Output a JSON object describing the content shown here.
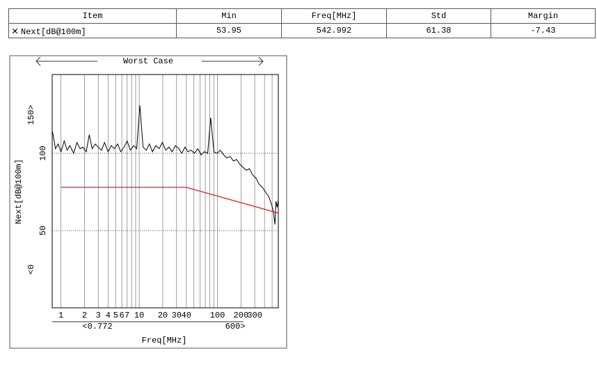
{
  "table": {
    "header": [
      "Item",
      "Min",
      "Freq[MHz]",
      "Std",
      "Margin"
    ],
    "rows": [
      [
        "Next[dB@100m]",
        "53.95",
        "542.992",
        "61.38",
        "-7.43"
      ]
    ]
  },
  "chart_data": {
    "type": "line",
    "title": "Worst Case",
    "xlabel": "Freq[MHz]",
    "ylabel": "Next[dB@100m]",
    "xscale": "log",
    "xlim": [
      0.772,
      600
    ],
    "ylim": [
      0,
      151
    ],
    "xticks": [
      1,
      2,
      3,
      4,
      5,
      6,
      7,
      10,
      20,
      30,
      40,
      100,
      200,
      300
    ],
    "x_minor_ticks": [
      8,
      9,
      50,
      60,
      70,
      80,
      90,
      400,
      500
    ],
    "yticks": [
      50,
      100
    ],
    "x_range_labels": [
      "<0.772",
      "600>"
    ],
    "y_range_labels": [
      "<0",
      "150>"
    ],
    "grid": true,
    "series": [
      {
        "color": "#000000",
        "x": [
          0.78,
          0.85,
          0.92,
          1,
          1.1,
          1.2,
          1.3,
          1.45,
          1.6,
          1.75,
          1.9,
          2.1,
          2.3,
          2.5,
          2.75,
          3,
          3.3,
          3.6,
          4,
          4.4,
          4.8,
          5.3,
          5.8,
          6.4,
          7,
          7.7,
          8.5,
          9.3,
          10.2,
          11.2,
          12.3,
          13.5,
          14.8,
          16.3,
          18,
          19.8,
          21.8,
          24,
          26.4,
          29,
          32,
          35,
          38.5,
          42,
          46,
          51,
          56,
          62,
          68,
          75,
          82,
          90,
          99,
          109,
          120,
          132,
          145,
          160,
          176,
          193,
          212,
          233,
          256,
          282,
          310,
          340,
          375,
          412,
          453,
          498,
          520,
          542.992,
          560,
          580,
          600
        ],
        "values": [
          114,
          103,
          106,
          101,
          108,
          102,
          105,
          100,
          107,
          103,
          104,
          101,
          112,
          103,
          106,
          104,
          102,
          107,
          101,
          105,
          103,
          106,
          101,
          104,
          108,
          102,
          105,
          103,
          131,
          104,
          102,
          106,
          101,
          105,
          103,
          107,
          102,
          104,
          101,
          105,
          103,
          100,
          104,
          101,
          102,
          100,
          103,
          99,
          101,
          100,
          123,
          101,
          100,
          102,
          99,
          97,
          98,
          95,
          96,
          93,
          91,
          89,
          90,
          86,
          84,
          80,
          78,
          75,
          72,
          66,
          62,
          53.95,
          69,
          65,
          70
        ]
      },
      {
        "color": "#e02020",
        "x": [
          1,
          40,
          600
        ],
        "values": [
          78,
          78,
          61.3
        ]
      }
    ]
  }
}
